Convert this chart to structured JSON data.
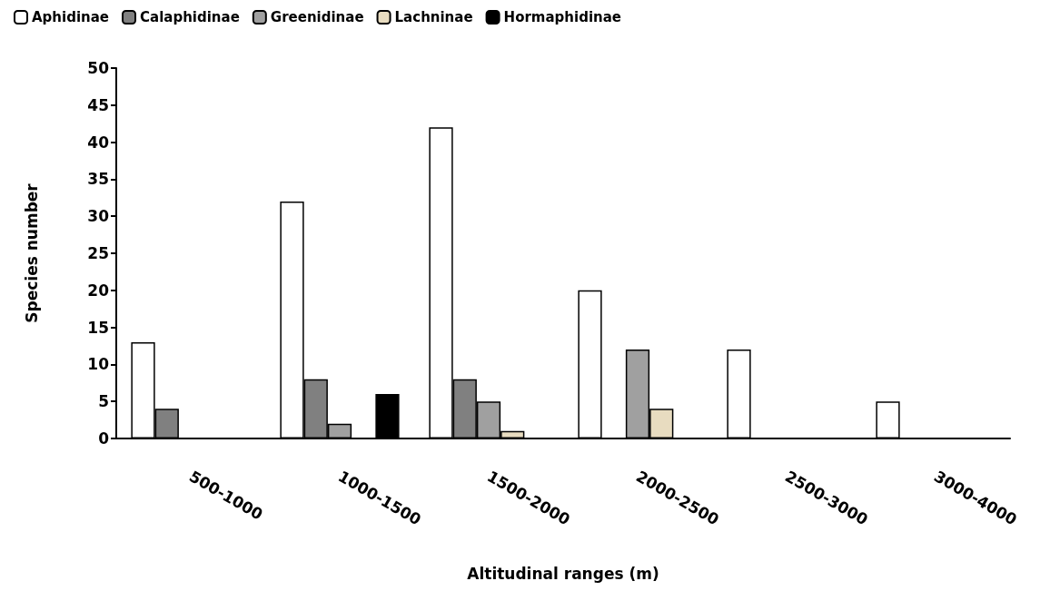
{
  "chart_data": {
    "type": "bar",
    "xlabel": "Altitudinal ranges (m)",
    "ylabel": "Species number",
    "categories": [
      "500-1000",
      "1000-1500",
      "1500-2000",
      "2000-2500",
      "2500-3000",
      "3000-4000"
    ],
    "series": [
      {
        "name": "Aphidinae",
        "color": "#ffffff",
        "values": [
          13,
          32,
          42,
          20,
          12,
          5
        ]
      },
      {
        "name": "Calaphidinae",
        "color": "#808080",
        "values": [
          4,
          8,
          8,
          null,
          null,
          null
        ]
      },
      {
        "name": "Greenidinae",
        "color": "#a0a0a0",
        "values": [
          null,
          2,
          5,
          12,
          null,
          null
        ]
      },
      {
        "name": "Lachninae",
        "color": "#e8dcc0",
        "values": [
          null,
          null,
          1,
          4,
          null,
          null
        ]
      },
      {
        "name": "Hormaphidinae",
        "color": "#000000",
        "values": [
          null,
          6,
          null,
          null,
          null,
          null
        ]
      }
    ],
    "ylim": [
      0,
      50
    ],
    "yticks": [
      0,
      5,
      10,
      15,
      20,
      25,
      30,
      35,
      40,
      45,
      50
    ],
    "grid": false,
    "legend": "top left"
  }
}
